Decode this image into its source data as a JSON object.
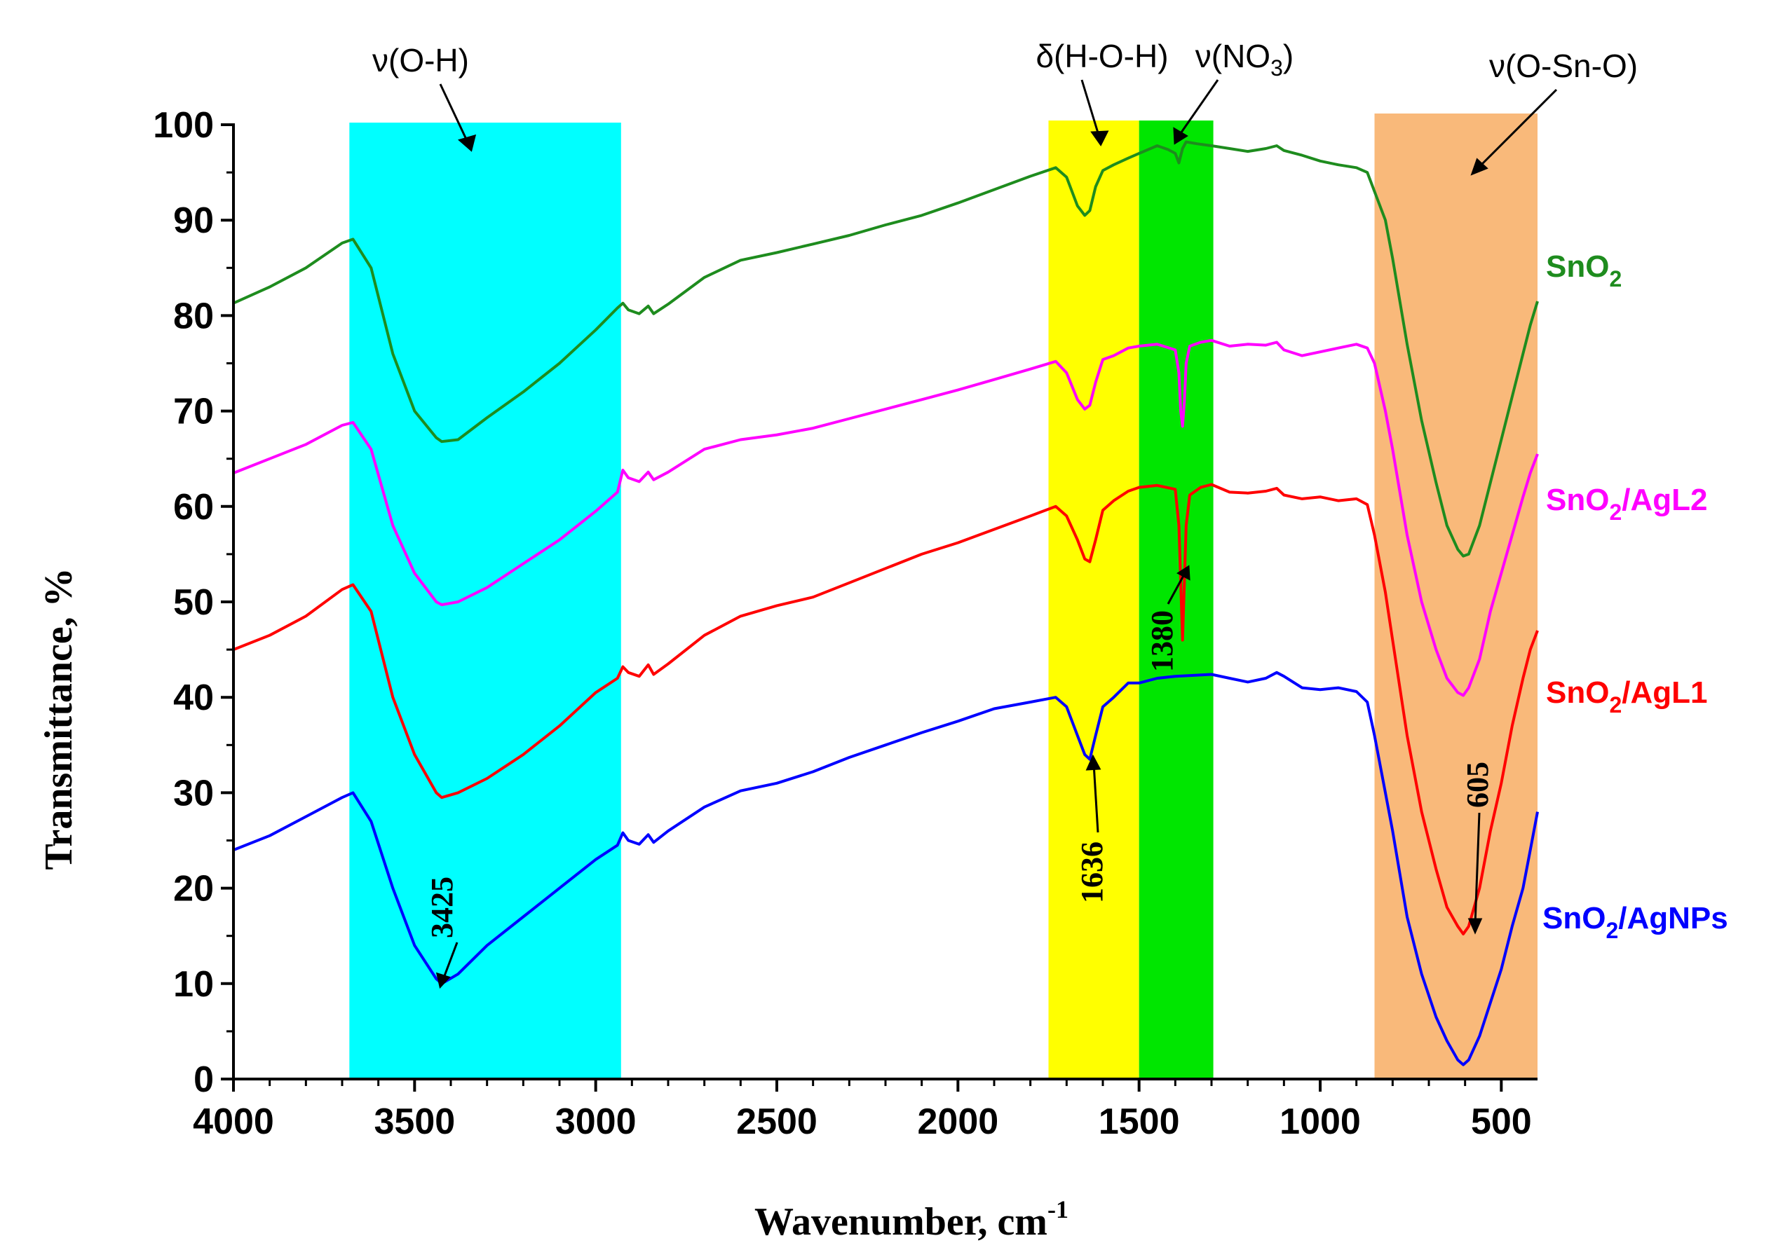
{
  "chart_data": {
    "type": "line",
    "title": "",
    "xlabel": "Wavenumber, cm",
    "xlabel_sup": "-1",
    "ylabel": "Transmittance, %",
    "xlim": [
      4000,
      400
    ],
    "ylim": [
      0,
      100
    ],
    "x_ticks": [
      4000,
      3500,
      3000,
      2500,
      2000,
      1500,
      1000,
      500
    ],
    "y_ticks": [
      0,
      10,
      20,
      30,
      40,
      50,
      60,
      70,
      80,
      90,
      100
    ],
    "grid": false,
    "legend_placement": "right",
    "bands": [
      {
        "label": "ν(O-H)",
        "x_from": 3680,
        "x_to": 2930,
        "color": "#00FFFF"
      },
      {
        "label": "δ(H-O-H)",
        "x_from": 1750,
        "x_to": 1500,
        "color": "#FFFF00"
      },
      {
        "label": "ν(NO3)",
        "x_from": 1500,
        "x_to": 1295,
        "color": "#00E600"
      },
      {
        "label": "ν(O-Sn-O)",
        "x_from": 850,
        "x_to": 400,
        "color": "#F9B97A"
      }
    ],
    "band_label_parts": {
      "oh": "ν(O-H)",
      "hoh": "δ(H-O-H)",
      "no3_prefix": "ν(NO",
      "no3_sub": "3",
      "no3_suffix": ")",
      "osno": "ν(O-Sn-O)"
    },
    "peak_labels": [
      "3425",
      "1636",
      "1380",
      "605"
    ],
    "series": [
      {
        "name": "SnO2/AgNPs",
        "legend_base": "SnO",
        "legend_sub": "2",
        "legend_rest": "/AgNPs",
        "color": "#0000FF",
        "x": [
          4000,
          3900,
          3800,
          3700,
          3670,
          3620,
          3560,
          3500,
          3440,
          3425,
          3380,
          3300,
          3200,
          3100,
          3000,
          2940,
          2925,
          2910,
          2880,
          2855,
          2840,
          2800,
          2700,
          2600,
          2500,
          2400,
          2300,
          2200,
          2100,
          2000,
          1900,
          1800,
          1730,
          1700,
          1670,
          1650,
          1636,
          1620,
          1600,
          1570,
          1530,
          1500,
          1450,
          1400,
          1350,
          1300,
          1250,
          1200,
          1150,
          1120,
          1100,
          1050,
          1000,
          950,
          900,
          870,
          850,
          820,
          800,
          760,
          720,
          680,
          650,
          620,
          605,
          590,
          560,
          530,
          500,
          470,
          440,
          420,
          400
        ],
        "y": [
          24,
          25.5,
          27.5,
          29.5,
          30,
          27,
          20,
          14,
          10.5,
          10,
          11,
          14,
          17,
          20,
          23,
          24.5,
          25.8,
          25,
          24.6,
          25.6,
          24.8,
          26,
          28.5,
          30.2,
          31,
          32.2,
          33.7,
          35,
          36.3,
          37.5,
          38.8,
          39.5,
          40,
          39,
          36,
          34,
          33.5,
          36,
          39,
          40,
          41.5,
          41.5,
          42,
          42.2,
          42.3,
          42.4,
          42,
          41.6,
          42,
          42.6,
          42.2,
          41,
          40.8,
          41,
          40.6,
          39.5,
          36,
          30,
          26,
          17,
          11,
          6.5,
          4,
          2,
          1.5,
          2,
          4.5,
          8,
          11.5,
          16,
          20,
          24,
          28
        ]
      },
      {
        "name": "SnO2/AgL1",
        "legend_base": "SnO",
        "legend_sub": "2",
        "legend_rest": "/AgL1",
        "color": "#FF0000",
        "x": [
          4000,
          3900,
          3800,
          3700,
          3670,
          3620,
          3560,
          3500,
          3440,
          3425,
          3380,
          3300,
          3200,
          3100,
          3000,
          2940,
          2925,
          2910,
          2880,
          2855,
          2840,
          2800,
          2700,
          2600,
          2500,
          2400,
          2300,
          2200,
          2100,
          2000,
          1900,
          1800,
          1730,
          1700,
          1670,
          1650,
          1636,
          1620,
          1600,
          1570,
          1530,
          1500,
          1450,
          1400,
          1390,
          1385,
          1380,
          1375,
          1370,
          1360,
          1330,
          1300,
          1250,
          1200,
          1150,
          1120,
          1100,
          1050,
          1000,
          950,
          900,
          870,
          850,
          820,
          800,
          760,
          720,
          680,
          650,
          620,
          605,
          590,
          560,
          530,
          500,
          470,
          440,
          420,
          400
        ],
        "y": [
          45,
          46.5,
          48.5,
          51.3,
          51.8,
          49,
          40,
          34,
          30,
          29.5,
          30,
          31.5,
          34,
          37,
          40.5,
          42,
          43.2,
          42.6,
          42.2,
          43.4,
          42.4,
          43.5,
          46.5,
          48.5,
          49.6,
          50.5,
          52,
          53.5,
          55,
          56.2,
          57.6,
          59,
          60,
          59,
          56.5,
          54.5,
          54.2,
          56.5,
          59.6,
          60.6,
          61.6,
          62,
          62.2,
          61.8,
          58,
          52,
          46,
          52,
          58,
          61.2,
          62,
          62.3,
          61.5,
          61.4,
          61.6,
          61.9,
          61.2,
          60.8,
          61,
          60.6,
          60.8,
          60.2,
          57,
          51,
          46,
          36,
          28,
          22,
          18,
          16,
          15.2,
          16,
          20,
          26,
          31,
          37,
          42,
          45,
          47
        ]
      },
      {
        "name": "SnO2/AgL2",
        "legend_base": "SnO",
        "legend_sub": "2",
        "legend_rest": "/AgL2",
        "color": "#FF00FF",
        "x": [
          4000,
          3900,
          3800,
          3700,
          3670,
          3620,
          3560,
          3500,
          3440,
          3425,
          3380,
          3300,
          3200,
          3100,
          3000,
          2940,
          2925,
          2910,
          2880,
          2855,
          2840,
          2800,
          2700,
          2600,
          2500,
          2400,
          2300,
          2200,
          2100,
          2000,
          1900,
          1800,
          1730,
          1700,
          1670,
          1650,
          1636,
          1620,
          1600,
          1570,
          1530,
          1500,
          1450,
          1400,
          1390,
          1385,
          1380,
          1375,
          1370,
          1360,
          1330,
          1300,
          1250,
          1200,
          1150,
          1120,
          1100,
          1050,
          1000,
          950,
          900,
          870,
          850,
          820,
          800,
          760,
          720,
          680,
          650,
          620,
          605,
          590,
          560,
          530,
          500,
          470,
          440,
          420,
          400
        ],
        "y": [
          63.5,
          65,
          66.5,
          68.5,
          68.8,
          66,
          58,
          53,
          50,
          49.7,
          50,
          51.5,
          54,
          56.5,
          59.5,
          61.5,
          63.8,
          63,
          62.6,
          63.6,
          62.8,
          63.6,
          66,
          67,
          67.5,
          68.2,
          69.2,
          70.2,
          71.2,
          72.2,
          73.3,
          74.4,
          75.2,
          74,
          71.2,
          70.2,
          70.6,
          73,
          75.4,
          75.8,
          76.6,
          76.8,
          77,
          76.4,
          74,
          70,
          68.4,
          71,
          75,
          76.8,
          77.2,
          77.4,
          76.8,
          77,
          76.9,
          77.2,
          76.4,
          75.8,
          76.2,
          76.6,
          77,
          76.6,
          75,
          70,
          66,
          57,
          50,
          45,
          42,
          40.5,
          40.2,
          41,
          44,
          49,
          53,
          57,
          61,
          63.5,
          65.5
        ]
      },
      {
        "name": "SnO2",
        "legend_base": "SnO",
        "legend_sub": "2",
        "legend_rest": "",
        "color": "#1E8C1E",
        "x": [
          4000,
          3900,
          3800,
          3700,
          3670,
          3620,
          3560,
          3500,
          3440,
          3425,
          3380,
          3300,
          3200,
          3100,
          3000,
          2940,
          2925,
          2910,
          2880,
          2855,
          2840,
          2800,
          2700,
          2600,
          2500,
          2400,
          2300,
          2200,
          2100,
          2000,
          1900,
          1800,
          1730,
          1700,
          1670,
          1650,
          1636,
          1620,
          1600,
          1570,
          1530,
          1500,
          1450,
          1420,
          1400,
          1390,
          1380,
          1370,
          1340,
          1300,
          1250,
          1200,
          1150,
          1120,
          1100,
          1050,
          1000,
          950,
          900,
          870,
          850,
          820,
          800,
          760,
          720,
          680,
          650,
          620,
          605,
          590,
          560,
          530,
          500,
          470,
          440,
          420,
          400
        ],
        "y": [
          81.3,
          83,
          85,
          87.6,
          88,
          85,
          76,
          70,
          67.2,
          66.8,
          67,
          69.3,
          72,
          75,
          78.5,
          80.8,
          81.3,
          80.6,
          80.2,
          81,
          80.2,
          81.2,
          84,
          85.8,
          86.6,
          87.5,
          88.4,
          89.5,
          90.5,
          91.8,
          93.2,
          94.6,
          95.5,
          94.5,
          91.5,
          90.5,
          91,
          93.5,
          95.2,
          95.8,
          96.5,
          97,
          97.8,
          97.4,
          97,
          96,
          97.5,
          98.2,
          98,
          97.8,
          97.5,
          97.2,
          97.5,
          97.8,
          97.3,
          96.8,
          96.2,
          95.8,
          95.5,
          95,
          93,
          90,
          86,
          77,
          69,
          62.5,
          58,
          55.5,
          54.8,
          55,
          58,
          62.5,
          67,
          71.5,
          76,
          79,
          81.5
        ]
      }
    ]
  }
}
